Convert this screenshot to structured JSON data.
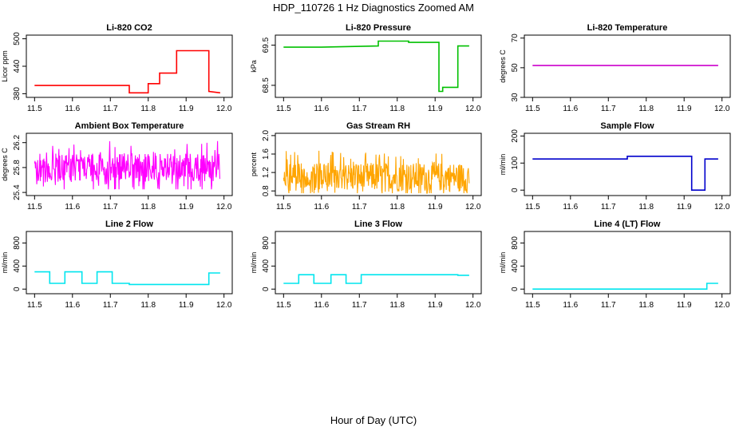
{
  "figure": {
    "title": "HDP_110726  1 Hz Diagnostics Zoomed AM",
    "xlabel": "Hour of Day (UTC)"
  },
  "chart_data": [
    {
      "type": "line",
      "title": "Li-820 CO2",
      "ylabel": "Licor ppm",
      "color": "#ff0000",
      "xlim": [
        11.5,
        12.0
      ],
      "ylim": [
        372,
        508
      ],
      "xticks": [
        "11.5",
        "11.6",
        "11.7",
        "11.8",
        "11.9",
        "12.0"
      ],
      "yticks": [
        {
          "v": 380,
          "label": "380"
        },
        {
          "v": 440,
          "label": "440"
        },
        {
          "v": 500,
          "label": "500"
        }
      ],
      "series": [
        {
          "x": [
            11.5,
            11.75,
            11.75,
            11.8,
            11.8,
            11.83,
            11.83,
            11.875,
            11.875,
            11.96,
            11.96,
            11.99
          ],
          "y": [
            398,
            398,
            382,
            382,
            402,
            402,
            425,
            425,
            474,
            474,
            385,
            382
          ]
        }
      ]
    },
    {
      "type": "line",
      "title": "Li-820 Pressure",
      "ylabel": "kPa",
      "color": "#00c000",
      "xlim": [
        11.5,
        12.0
      ],
      "ylim": [
        68.2,
        69.75
      ],
      "xticks": [
        "11.5",
        "11.6",
        "11.7",
        "11.8",
        "11.9",
        "12.0"
      ],
      "yticks": [
        {
          "v": 68.5,
          "label": "68.5"
        },
        {
          "v": 69.5,
          "label": "69.5"
        }
      ],
      "series": [
        {
          "x": [
            11.5,
            11.6,
            11.75,
            11.75,
            11.83,
            11.83,
            11.91,
            11.91,
            11.92,
            11.92,
            11.96,
            11.96,
            11.99
          ],
          "y": [
            69.45,
            69.45,
            69.48,
            69.6,
            69.6,
            69.57,
            69.57,
            68.35,
            68.35,
            68.45,
            68.45,
            69.48,
            69.48
          ]
        }
      ]
    },
    {
      "type": "line",
      "title": "Li-820 Temperature",
      "ylabel": "degrees C",
      "color": "#cc00cc",
      "xlim": [
        11.5,
        12.0
      ],
      "ylim": [
        30,
        72
      ],
      "xticks": [
        "11.5",
        "11.6",
        "11.7",
        "11.8",
        "11.9",
        "12.0"
      ],
      "yticks": [
        {
          "v": 30,
          "label": "30"
        },
        {
          "v": 50,
          "label": "50"
        },
        {
          "v": 70,
          "label": "70"
        }
      ],
      "series": [
        {
          "x": [
            11.5,
            11.99
          ],
          "y": [
            51.5,
            51.5
          ]
        }
      ]
    },
    {
      "type": "line",
      "title": "Ambient Box Temperature",
      "ylabel": "degrees C",
      "color": "#ff00ff",
      "xlim": [
        11.5,
        12.0
      ],
      "ylim": [
        25.35,
        26.35
      ],
      "xticks": [
        "11.5",
        "11.6",
        "11.7",
        "11.8",
        "11.9",
        "12.0"
      ],
      "yticks": [
        {
          "v": 25.4,
          "label": "25.4"
        },
        {
          "v": 25.8,
          "label": "25.8"
        },
        {
          "v": 26.2,
          "label": "26.2"
        }
      ],
      "noisy": true,
      "noise": {
        "low": 25.45,
        "high": 26.3,
        "center": 25.8
      }
    },
    {
      "type": "line",
      "title": "Gas Stream RH",
      "ylabel": "percent",
      "color": "#ffa500",
      "xlim": [
        11.5,
        12.0
      ],
      "ylim": [
        0.7,
        2.05
      ],
      "xticks": [
        "11.5",
        "11.6",
        "11.7",
        "11.8",
        "11.9",
        "12.0"
      ],
      "yticks": [
        {
          "v": 0.8,
          "label": "0.8"
        },
        {
          "v": 1.2,
          "label": "1.2"
        },
        {
          "v": 1.6,
          "label": "1.6"
        },
        {
          "v": 2.0,
          "label": "2.0"
        }
      ],
      "noisy": true,
      "noise": {
        "low": 0.75,
        "high": 1.9,
        "center": 1.1
      }
    },
    {
      "type": "line",
      "title": "Sample Flow",
      "ylabel": "ml/min",
      "color": "#0000cc",
      "xlim": [
        11.5,
        12.0
      ],
      "ylim": [
        -20,
        210
      ],
      "xticks": [
        "11.5",
        "11.6",
        "11.7",
        "11.8",
        "11.9",
        "12.0"
      ],
      "yticks": [
        {
          "v": 0,
          "label": "0"
        },
        {
          "v": 100,
          "label": "100"
        },
        {
          "v": 200,
          "label": "200"
        }
      ],
      "series": [
        {
          "x": [
            11.5,
            11.75,
            11.75,
            11.92,
            11.92,
            11.955,
            11.955,
            11.99
          ],
          "y": [
            115,
            115,
            125,
            125,
            0,
            0,
            115,
            115
          ]
        }
      ]
    },
    {
      "type": "line",
      "title": "Line 2 Flow",
      "ylabel": "ml/min",
      "color": "#00e5ee",
      "xlim": [
        11.5,
        12.0
      ],
      "ylim": [
        -80,
        1000
      ],
      "xticks": [
        "11.5",
        "11.6",
        "11.7",
        "11.8",
        "11.9",
        "12.0"
      ],
      "yticks": [
        {
          "v": 0,
          "label": "0"
        },
        {
          "v": 400,
          "label": "400"
        },
        {
          "v": 800,
          "label": "800"
        }
      ],
      "series": [
        {
          "x": [
            11.5,
            11.54,
            11.54,
            11.58,
            11.58,
            11.625,
            11.625,
            11.665,
            11.665,
            11.705,
            11.705,
            11.75,
            11.75,
            11.96,
            11.96,
            11.99
          ],
          "y": [
            300,
            300,
            100,
            100,
            300,
            300,
            100,
            100,
            300,
            300,
            100,
            100,
            80,
            80,
            280,
            280
          ]
        }
      ]
    },
    {
      "type": "line",
      "title": "Line 3 Flow",
      "ylabel": "ml/min",
      "color": "#00e5ee",
      "xlim": [
        11.5,
        12.0
      ],
      "ylim": [
        -80,
        1000
      ],
      "xticks": [
        "11.5",
        "11.6",
        "11.7",
        "11.8",
        "11.9",
        "12.0"
      ],
      "yticks": [
        {
          "v": 0,
          "label": "0"
        },
        {
          "v": 400,
          "label": "400"
        },
        {
          "v": 800,
          "label": "800"
        }
      ],
      "series": [
        {
          "x": [
            11.5,
            11.54,
            11.54,
            11.58,
            11.58,
            11.625,
            11.625,
            11.665,
            11.665,
            11.705,
            11.705,
            11.96,
            11.96,
            11.99
          ],
          "y": [
            100,
            100,
            250,
            250,
            100,
            100,
            250,
            250,
            100,
            100,
            250,
            250,
            240,
            240
          ]
        }
      ]
    },
    {
      "type": "line",
      "title": "Line 4 (LT) Flow",
      "ylabel": "ml/min",
      "color": "#00e5ee",
      "xlim": [
        11.5,
        12.0
      ],
      "ylim": [
        -80,
        1000
      ],
      "xticks": [
        "11.5",
        "11.6",
        "11.7",
        "11.8",
        "11.9",
        "12.0"
      ],
      "yticks": [
        {
          "v": 0,
          "label": "0"
        },
        {
          "v": 400,
          "label": "400"
        },
        {
          "v": 800,
          "label": "800"
        }
      ],
      "series": [
        {
          "x": [
            11.5,
            11.96,
            11.96,
            11.99
          ],
          "y": [
            0,
            0,
            100,
            100
          ]
        }
      ]
    }
  ]
}
